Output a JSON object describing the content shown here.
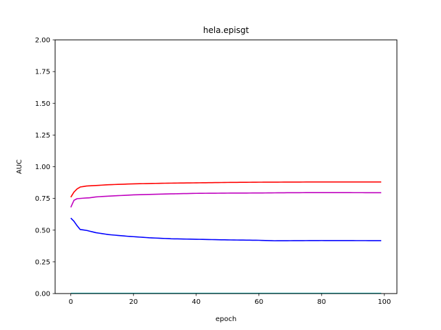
{
  "chart_data": {
    "type": "line",
    "title": "hela.episgt",
    "xlabel": "epoch",
    "ylabel": "AUC",
    "xlim": [
      -5,
      104
    ],
    "ylim": [
      0.0,
      2.0
    ],
    "xticks": [
      0,
      20,
      40,
      60,
      80,
      100
    ],
    "yticks": [
      0.0,
      0.25,
      0.5,
      0.75,
      1.0,
      1.25,
      1.5,
      1.75,
      2.0
    ],
    "xtick_labels": [
      "0",
      "20",
      "40",
      "60",
      "80",
      "100"
    ],
    "ytick_labels": [
      "0.00",
      "0.25",
      "0.50",
      "0.75",
      "1.00",
      "1.25",
      "1.50",
      "1.75",
      "2.00"
    ],
    "grid": false,
    "legend": "none",
    "series": [
      {
        "color": "#ff0000",
        "anchors": [
          [
            0,
            0.76
          ],
          [
            1,
            0.8
          ],
          [
            2,
            0.825
          ],
          [
            3,
            0.84
          ],
          [
            5,
            0.848
          ],
          [
            8,
            0.852
          ],
          [
            12,
            0.858
          ],
          [
            20,
            0.865
          ],
          [
            30,
            0.87
          ],
          [
            40,
            0.873
          ],
          [
            50,
            0.876
          ],
          [
            60,
            0.878
          ],
          [
            70,
            0.879
          ],
          [
            80,
            0.88
          ],
          [
            99,
            0.88
          ]
        ]
      },
      {
        "color": "#bf00bf",
        "anchors": [
          [
            0,
            0.68
          ],
          [
            1,
            0.735
          ],
          [
            2,
            0.748
          ],
          [
            4,
            0.752
          ],
          [
            6,
            0.755
          ],
          [
            8,
            0.762
          ],
          [
            12,
            0.768
          ],
          [
            20,
            0.778
          ],
          [
            30,
            0.785
          ],
          [
            40,
            0.79
          ],
          [
            50,
            0.792
          ],
          [
            60,
            0.793
          ],
          [
            70,
            0.795
          ],
          [
            80,
            0.796
          ],
          [
            99,
            0.795
          ]
        ]
      },
      {
        "color": "#0000ff",
        "anchors": [
          [
            0,
            0.595
          ],
          [
            1,
            0.57
          ],
          [
            2,
            0.535
          ],
          [
            3,
            0.505
          ],
          [
            5,
            0.498
          ],
          [
            8,
            0.48
          ],
          [
            12,
            0.465
          ],
          [
            18,
            0.452
          ],
          [
            25,
            0.44
          ],
          [
            32,
            0.432
          ],
          [
            40,
            0.428
          ],
          [
            50,
            0.423
          ],
          [
            60,
            0.42
          ],
          [
            65,
            0.416
          ],
          [
            80,
            0.418
          ],
          [
            99,
            0.417
          ]
        ]
      },
      {
        "color": "#00bfbf",
        "anchors": [
          [
            0,
            0.002
          ],
          [
            99,
            0.002
          ]
        ]
      }
    ]
  }
}
